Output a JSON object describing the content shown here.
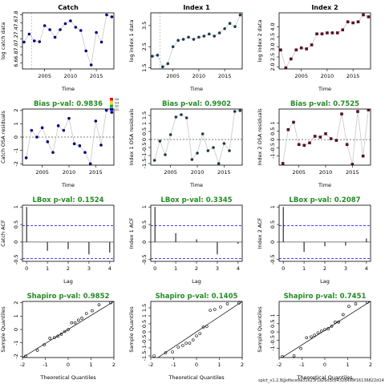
{
  "footer": "spict_v1.2.8@dfece9a31623f1a26d3cb4328499f16136822d14",
  "legend_labels": [
    "Q4",
    "Q3",
    "Q2",
    "Q1"
  ],
  "colors": {
    "catch": "#000080",
    "index1": "#1f3a4a",
    "index2": "#5a0f2a",
    "pval_green": "#228B22",
    "line_gray": "#c8c8c8",
    "acf_blue": "#0000ff",
    "legend": [
      "#ff0000",
      "#ffd700",
      "#00c000",
      "#0000ff"
    ]
  },
  "chart_data": [
    {
      "id": "catch-ts",
      "type": "line",
      "title": "Catch",
      "xlabel": "Time",
      "ylabel": "log catch data",
      "x": [
        2001,
        2002,
        2003,
        2004,
        2005,
        2006,
        2007,
        2008,
        2009,
        2010,
        2011,
        2012,
        2013,
        2014,
        2015,
        2016,
        2017,
        2018
      ],
      "y": [
        7.12,
        7.32,
        7.15,
        7.13,
        7.53,
        7.43,
        7.24,
        7.43,
        7.58,
        7.65,
        7.49,
        7.41,
        6.9,
        6.55,
        7.36,
        7.12,
        7.8,
        7.75
      ],
      "xlim": [
        2000.7,
        2018.4
      ],
      "ylim": [
        6.45,
        7.85
      ],
      "xticks": [
        2005,
        2010,
        2015
      ],
      "yticks": [
        6.6,
        6.8,
        7.0,
        7.2,
        7.4,
        7.6,
        7.8
      ],
      "vline": 2002.5
    },
    {
      "id": "index1-ts",
      "type": "line",
      "title": "Index 1",
      "xlabel": "Time",
      "ylabel": "log index 1 data",
      "x": [
        2001,
        2002,
        2003,
        2004,
        2005,
        2006,
        2007,
        2008,
        2009,
        2010,
        2011,
        2012,
        2013,
        2014,
        2015,
        2016,
        2017,
        2018
      ],
      "y": [
        2.05,
        2.1,
        1.55,
        1.7,
        2.5,
        2.8,
        2.85,
        2.95,
        2.85,
        2.95,
        3.0,
        3.1,
        3.0,
        3.15,
        3.35,
        3.6,
        3.45,
        4.0
      ],
      "xlim": [
        2000.7,
        2018.4
      ],
      "ylim": [
        1.45,
        4.1
      ],
      "xticks": [
        2005,
        2010,
        2015
      ],
      "yticks": [
        1.5,
        2.5,
        3.5
      ],
      "vline": 2002.5
    },
    {
      "id": "index2-ts",
      "type": "line",
      "title": "Index 2",
      "xlabel": "Time",
      "ylabel": "log index 2 data",
      "x": [
        2001,
        2002,
        2003,
        2004,
        2005,
        2006,
        2007,
        2008,
        2009,
        2010,
        2011,
        2012,
        2013,
        2014,
        2015,
        2016,
        2017,
        2018
      ],
      "y": [
        2.85,
        1.95,
        2.4,
        2.85,
        2.95,
        2.9,
        3.1,
        3.65,
        3.65,
        3.7,
        3.7,
        3.7,
        3.85,
        4.25,
        4.2,
        4.25,
        4.6,
        4.5
      ],
      "xlim": [
        2000.7,
        2018.4
      ],
      "ylim": [
        1.9,
        4.7
      ],
      "xticks": [
        2005,
        2010,
        2015
      ],
      "yticks": [
        2.0,
        2.5,
        3.0,
        3.5,
        4.0
      ],
      "vline": null
    },
    {
      "id": "catch-osa",
      "type": "scatter",
      "title": "Bias p-val: 0.9836",
      "xlabel": "Time",
      "ylabel": "Catch OSA residuals",
      "x": [
        2002,
        2003,
        2004,
        2005,
        2006,
        2007,
        2008,
        2009,
        2010,
        2011,
        2012,
        2013,
        2014,
        2015,
        2016,
        2017,
        2018
      ],
      "y": [
        -1.55,
        0.5,
        0.0,
        0.7,
        -0.35,
        -1.15,
        0.85,
        0.5,
        1.4,
        -0.5,
        -0.65,
        -1.15,
        -2.0,
        1.2,
        -0.6,
        2.0,
        1.85
      ],
      "xlim": [
        2001.3,
        2018.4
      ],
      "ylim": [
        -2.1,
        2.1
      ],
      "xticks": [
        2005,
        2010,
        2015
      ],
      "yticks": [
        -2,
        -1,
        0,
        1,
        2
      ]
    },
    {
      "id": "index1-osa",
      "type": "scatter",
      "title": "Bias p-val: 0.9902",
      "xlabel": "Time",
      "ylabel": "Index 1 OSA residuals",
      "x": [
        2002,
        2003,
        2004,
        2005,
        2006,
        2007,
        2008,
        2009,
        2010,
        2011,
        2012,
        2013,
        2014,
        2015,
        2016,
        2017,
        2018
      ],
      "y": [
        -1.3,
        -0.1,
        -0.95,
        0.3,
        1.4,
        1.55,
        1.35,
        -1.25,
        -0.85,
        0.35,
        -0.7,
        -0.5,
        -1.5,
        -0.25,
        -0.7,
        1.75,
        1.8
      ],
      "xlim": [
        2001.3,
        2018.4
      ],
      "ylim": [
        -1.6,
        1.9
      ],
      "xticks": [
        2005,
        2010,
        2015
      ],
      "yticks": [
        -1.5,
        -1.0,
        -0.5,
        0.0,
        0.5,
        1.0,
        1.5
      ]
    },
    {
      "id": "index2-osa",
      "type": "scatter",
      "title": "Bias p-val: 0.7525",
      "xlabel": "Time",
      "ylabel": "Index 2 OSA residuals",
      "x": [
        2002,
        2003,
        2004,
        2005,
        2006,
        2007,
        2008,
        2009,
        2010,
        2011,
        2012,
        2013,
        2014,
        2015,
        2016,
        2017,
        2018
      ],
      "y": [
        -1.45,
        0.6,
        1.05,
        -0.3,
        -0.35,
        -0.2,
        0.2,
        0.15,
        0.35,
        0.05,
        -0.05,
        1.55,
        -0.3,
        -1.5,
        1.7,
        -1.0,
        1.8
      ],
      "xlim": [
        2001.3,
        2018.4
      ],
      "ylim": [
        -1.55,
        1.85
      ],
      "xticks": [
        2005,
        2010,
        2015
      ],
      "yticks": [
        -1.0,
        -0.5,
        0.0,
        0.5,
        1.0
      ]
    },
    {
      "id": "catch-acf",
      "type": "bar",
      "title": "LBox p-val: 0.1524",
      "xlabel": "Lag",
      "ylabel": "Catch ACF",
      "lags": [
        0,
        1,
        2,
        3,
        4
      ],
      "values": [
        1.0,
        -0.25,
        -0.2,
        -0.35,
        -0.3
      ],
      "ci": 0.47,
      "xlim": [
        -0.2,
        4.2
      ],
      "ylim": [
        -0.55,
        1.05
      ],
      "xticks": [
        0,
        1,
        2,
        3,
        4
      ],
      "yticks": [
        -0.5,
        0.0,
        0.5,
        1.0
      ]
    },
    {
      "id": "index1-acf",
      "type": "bar",
      "title": "LBox p-val: 0.3345",
      "xlabel": "Lag",
      "ylabel": "Index 1 ACF",
      "lags": [
        0,
        1,
        2,
        3,
        4
      ],
      "values": [
        1.0,
        0.25,
        0.08,
        -0.35,
        -0.05
      ],
      "ci": 0.47,
      "xlim": [
        -0.2,
        4.2
      ],
      "ylim": [
        -0.55,
        1.05
      ],
      "xticks": [
        0,
        1,
        2,
        3,
        4
      ],
      "yticks": [
        -0.5,
        0.0,
        0.5,
        1.0
      ]
    },
    {
      "id": "index2-acf",
      "type": "bar",
      "title": "LBox p-val: 0.2087",
      "xlabel": "Lag",
      "ylabel": "Index 2 ACF",
      "lags": [
        0,
        1,
        2,
        3,
        4
      ],
      "values": [
        1.0,
        -0.28,
        -0.12,
        -0.1,
        0.1
      ],
      "ci": 0.47,
      "xlim": [
        -0.2,
        4.2
      ],
      "ylim": [
        -0.55,
        1.05
      ],
      "xticks": [
        0,
        1,
        2,
        3,
        4
      ],
      "yticks": [
        -0.5,
        0.0,
        0.5,
        1.0
      ]
    },
    {
      "id": "catch-qq",
      "type": "scatter",
      "title": "Shapiro p-val: 0.9852",
      "xlabel": "Theoretical Quantiles",
      "ylabel": "Sample Quantiles",
      "x": [
        -1.86,
        -1.35,
        -1.05,
        -0.8,
        -0.6,
        -0.45,
        -0.3,
        -0.15,
        0,
        0.15,
        0.3,
        0.45,
        0.6,
        0.8,
        1.05,
        1.35,
        1.86
      ],
      "y": [
        -2.0,
        -1.55,
        -1.15,
        -0.65,
        -0.6,
        -0.5,
        -0.35,
        -0.15,
        0.0,
        0.5,
        0.5,
        0.7,
        0.85,
        1.2,
        1.4,
        1.85,
        2.0
      ],
      "xlim": [
        -2.0,
        2.0
      ],
      "ylim": [
        -2.1,
        2.1
      ],
      "xticks": [
        -2,
        -1,
        0,
        1,
        2
      ],
      "yticks": [
        -2,
        -1,
        0,
        1,
        2
      ],
      "line": [
        0,
        1.05
      ]
    },
    {
      "id": "index1-qq",
      "type": "scatter",
      "title": "Shapiro p-val: 0.1405",
      "xlabel": "Theoretical Quantiles",
      "ylabel": "Sample Quantiles",
      "x": [
        -1.86,
        -1.35,
        -1.05,
        -0.8,
        -0.6,
        -0.45,
        -0.3,
        -0.15,
        0,
        0.15,
        0.3,
        0.45,
        0.6,
        0.8,
        1.05,
        1.35,
        1.86
      ],
      "y": [
        -1.5,
        -1.3,
        -1.25,
        -0.95,
        -0.85,
        -0.7,
        -0.7,
        -0.5,
        -0.25,
        -0.1,
        0.3,
        0.35,
        1.35,
        1.4,
        1.55,
        1.75,
        1.8
      ],
      "xlim": [
        -2.0,
        2.0
      ],
      "ylim": [
        -1.6,
        1.9
      ],
      "xticks": [
        -2,
        -1,
        0,
        1,
        2
      ],
      "yticks": [
        -1.5,
        -1.0,
        -0.5,
        0.0,
        0.5,
        1.0,
        1.5
      ],
      "line": [
        0,
        0.95
      ]
    },
    {
      "id": "index2-qq",
      "type": "scatter",
      "title": "Shapiro p-val: 0.7451",
      "xlabel": "Theoretical Quantiles",
      "ylabel": "Sample Quantiles",
      "x": [
        -1.86,
        -1.35,
        -1.05,
        -0.8,
        -0.6,
        -0.45,
        -0.3,
        -0.15,
        0,
        0.15,
        0.3,
        0.45,
        0.6,
        0.8,
        1.05,
        1.35,
        1.86
      ],
      "y": [
        -1.5,
        -1.45,
        -1.0,
        -0.35,
        -0.3,
        -0.2,
        -0.05,
        0.05,
        0.15,
        0.2,
        0.35,
        0.6,
        0.6,
        1.05,
        1.55,
        1.7,
        1.8
      ],
      "xlim": [
        -2.0,
        2.0
      ],
      "ylim": [
        -1.55,
        1.85
      ],
      "xticks": [
        -2,
        -1,
        0,
        1,
        2
      ],
      "yticks": [
        -1.0,
        -0.5,
        0.0,
        0.5,
        1.0
      ],
      "line": [
        0.1,
        0.88
      ]
    }
  ]
}
